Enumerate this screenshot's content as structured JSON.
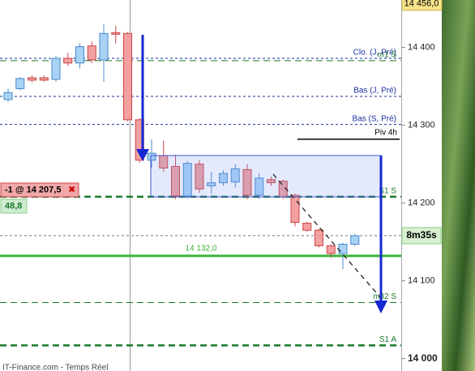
{
  "chart_data": {
    "type": "candlestick",
    "ylim": [
      13984,
      14461
    ],
    "yticks": [
      {
        "value": 14000,
        "label": "14 000"
      },
      {
        "value": 14100,
        "label": "14 100"
      },
      {
        "value": 14200,
        "label": "14 200"
      },
      {
        "value": 14300,
        "label": "14 300"
      },
      {
        "value": 14400,
        "label": "14 400"
      }
    ],
    "up_color": "#a9d3f5",
    "down_color": "#f2a0a0",
    "open": [
      14333,
      14347,
      14361,
      14361,
      14359,
      14386,
      14380,
      14402,
      14384,
      14419,
      14418,
      14307,
      14255,
      14261,
      14247,
      14209,
      14250,
      14222,
      14226,
      14227,
      14243,
      14210,
      14230,
      14228,
      14210,
      14174,
      14165,
      14145,
      14135,
      14147
    ],
    "close": [
      14342,
      14360,
      14358,
      14358,
      14386,
      14380,
      14401,
      14384,
      14418,
      14417,
      14307,
      14255,
      14264,
      14245,
      14209,
      14251,
      14218,
      14226,
      14238,
      14244,
      14210,
      14232,
      14226,
      14208,
      14175,
      14165,
      14145,
      14135,
      14147,
      14158
    ],
    "high": [
      14347,
      14362,
      14364,
      14364,
      14389,
      14393,
      14405,
      14408,
      14430,
      14428,
      14420,
      14309,
      14282,
      14280,
      14262,
      14254,
      14255,
      14240,
      14242,
      14250,
      14250,
      14238,
      14234,
      14230,
      14212,
      14176,
      14167,
      14147,
      14149,
      14160
    ],
    "low": [
      14330,
      14345,
      14355,
      14356,
      14356,
      14376,
      14373,
      14380,
      14356,
      14405,
      14305,
      14252,
      14245,
      14240,
      14205,
      14205,
      14213,
      14212,
      14222,
      14220,
      14205,
      14205,
      14222,
      14205,
      14170,
      14163,
      14143,
      14130,
      14115,
      14145
    ],
    "levels": [
      {
        "label": "Clo. (J, Pré)",
        "value": 14386,
        "color": "#1a2ea0"
      },
      {
        "label": "m1 S",
        "value": 14383,
        "color": "#1a7a2a"
      },
      {
        "label": "Bas (J, Pré)",
        "value": 14337,
        "color": "#1a2ea0"
      },
      {
        "label": "Bas (S, Pré)",
        "value": 14301,
        "color": "#1a2ea0"
      },
      {
        "label": "Piv 4h",
        "value": 14282,
        "color": "#000000"
      },
      {
        "label": "S1 S",
        "value": 14208,
        "color": "#1a7a2a"
      },
      {
        "label": "14 132,0",
        "value": 14132,
        "color": "#3cb43c"
      },
      {
        "label": "m32 S",
        "value": 14072,
        "color": "#1a7a2a"
      },
      {
        "label": "S1 A",
        "value": 14017,
        "color": "#1a7a2a"
      }
    ],
    "last_price": {
      "value": 14158,
      "timer": "8m35s"
    },
    "top_price": {
      "value": 14456,
      "label": "14 456,0"
    },
    "order": {
      "label": "-1 @ 14 207,5",
      "close": "✖",
      "pnl": "48,8"
    },
    "source": "IT-Finance.com - Temps Réel"
  }
}
